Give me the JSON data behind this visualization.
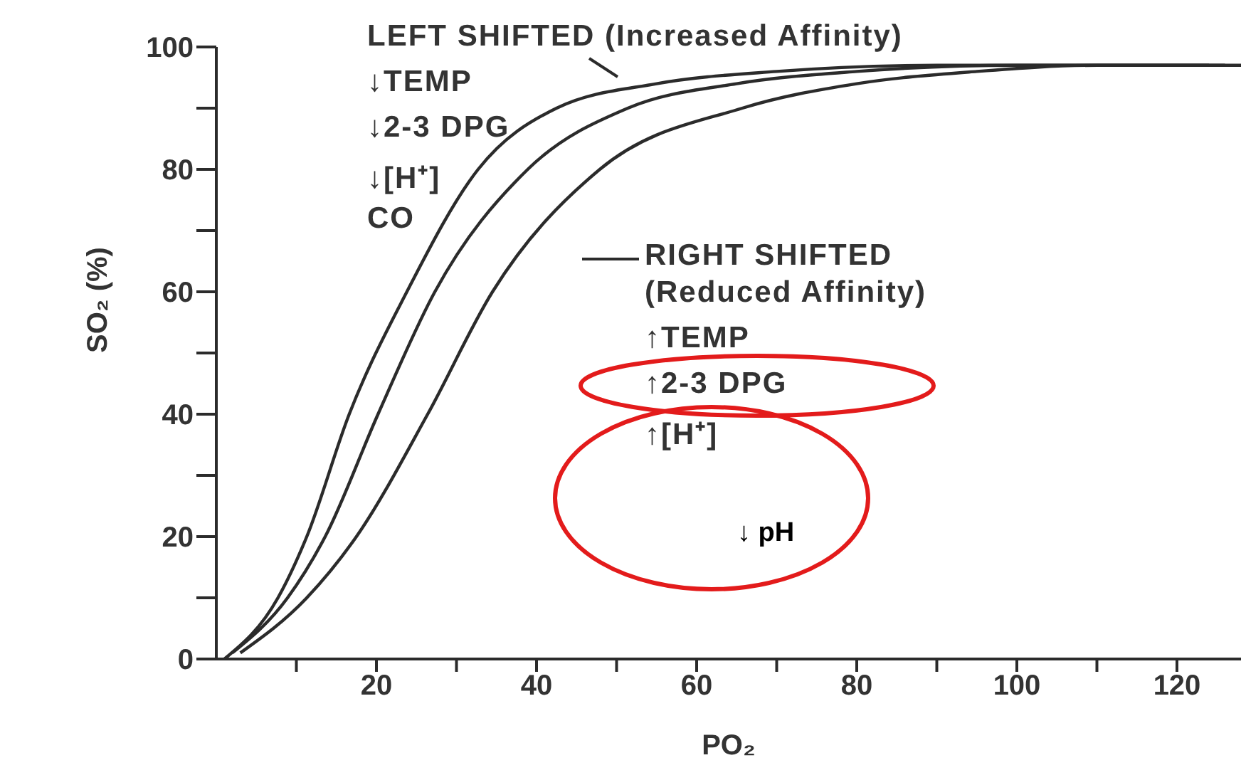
{
  "chart_data": {
    "type": "line",
    "xlabel": "PO₂",
    "ylabel": "SO₂ (%)",
    "xlim": [
      0,
      128
    ],
    "ylim": [
      0,
      100
    ],
    "xticks": [
      {
        "value": 10,
        "label": null
      },
      20,
      {
        "value": 30,
        "label": null
      },
      40,
      {
        "value": 50,
        "label": null
      },
      60,
      {
        "value": 70,
        "label": null
      },
      80,
      {
        "value": 90,
        "label": null
      },
      100,
      {
        "value": 110,
        "label": null
      },
      120
    ],
    "yticks": [
      0,
      {
        "value": 10,
        "label": null
      },
      20,
      {
        "value": 30,
        "label": null
      },
      40,
      {
        "value": 50,
        "label": null
      },
      60,
      {
        "value": 70,
        "label": null
      },
      80,
      {
        "value": 90,
        "label": null
      },
      100
    ],
    "marker": "none",
    "line_style": "solid",
    "series": [
      {
        "color": "#2b2b2b",
        "x": [
          1,
          7.7,
          11.3,
          16.6,
          23.8,
          32.7,
          42.5,
          55,
          70,
          90,
          110,
          128
        ],
        "values": [
          0,
          10,
          20,
          40,
          60,
          80,
          90,
          94,
          96,
          97,
          97,
          97
        ]
      },
      {
        "color": "#2b2b2b",
        "x": [
          2,
          8.9,
          13.6,
          20.2,
          27.3,
          38.9,
          51.4,
          65,
          80,
          100,
          126
        ],
        "values": [
          1,
          10,
          20,
          40,
          60,
          80,
          90,
          94,
          96,
          97,
          97
        ]
      },
      {
        "color": "#2b2b2b",
        "x": [
          3,
          11.3,
          17.5,
          26.4,
          34.5,
          47.9,
          65.7,
          80,
          95,
          110,
          124
        ],
        "values": [
          1,
          10,
          20,
          40,
          60,
          80,
          90,
          94,
          96,
          97,
          97
        ]
      }
    ],
    "annotations": [
      "LEFT SHIFTED (Increased Affinity)",
      "↓TEMP",
      "↓2-3 DPG",
      "↓[H⁺]",
      "CO",
      "RIGHT SHIFTED",
      "(Reduced Affinity)",
      "↑TEMP",
      "↑2-3 DPG",
      "↑[H⁺]",
      "↓ pH"
    ]
  }
}
